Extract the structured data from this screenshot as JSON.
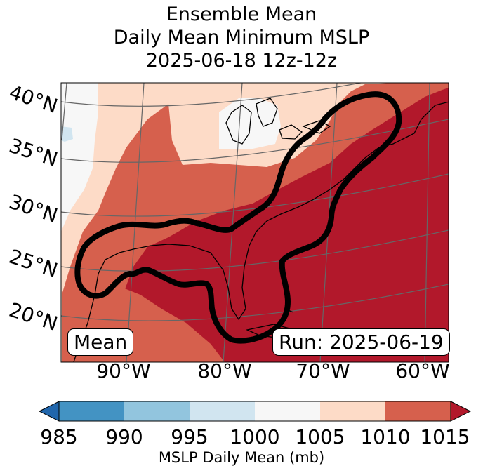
{
  "title": {
    "line1": "Ensemble Mean",
    "line2": "Daily Mean Minimum MSLP",
    "line3": "2025-06-18 12z-12z"
  },
  "map": {
    "lat_labels": [
      "40°N",
      "35°N",
      "30°N",
      "25°N",
      "20°N"
    ],
    "lon_labels": [
      "90°W",
      "80°W",
      "70°W",
      "60°W"
    ],
    "mean_label": "Mean",
    "run_label": "Run: 2025-06-19"
  },
  "colorbar": {
    "ticks": [
      "985",
      "990",
      "995",
      "1000",
      "1005",
      "1010",
      "1015"
    ],
    "label": "MSLP Daily Mean (mb)",
    "colors": {
      "below": "#2166ac",
      "b985_990": "#4393c3",
      "b990_995": "#92c5de",
      "b995_1000": "#d1e5f0",
      "b1000_1005": "#f7f7f7",
      "b1005_1010": "#fddbc7",
      "b1010_1015": "#d6604d",
      "above": "#b2182b"
    }
  }
}
